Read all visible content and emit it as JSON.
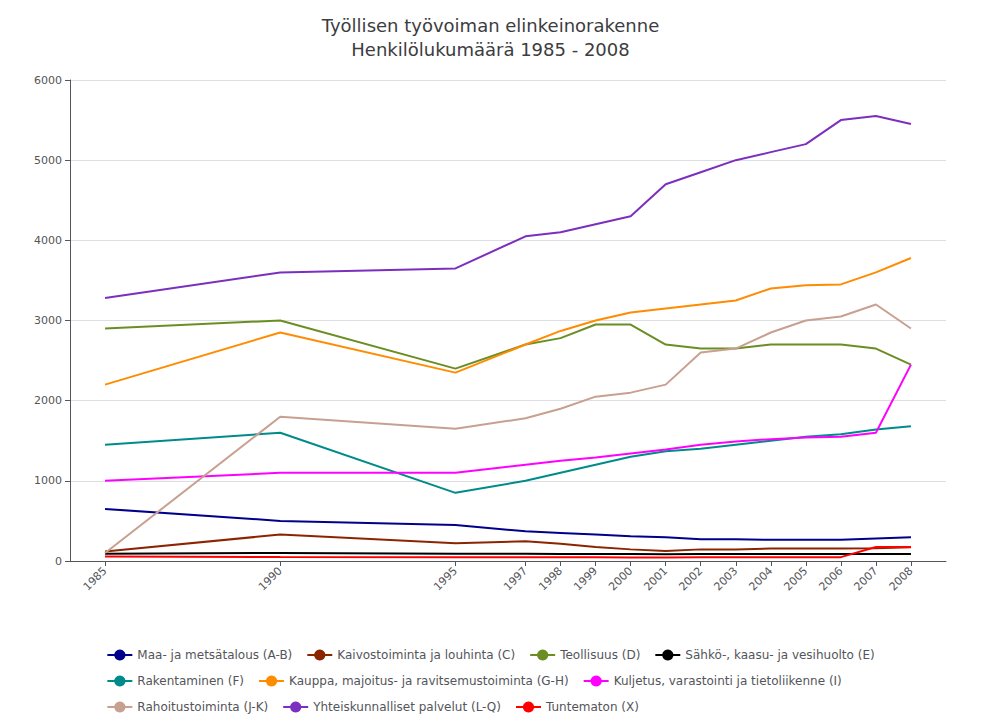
{
  "chart_data": {
    "type": "line",
    "title": "Työllisen työvoiman elinkeinorakenne\nHenkilölukumäärä 1985 - 2008",
    "x": [
      1985,
      1990,
      1995,
      1997,
      1998,
      1999,
      2000,
      2001,
      2002,
      2003,
      2004,
      2005,
      2006,
      2007,
      2008
    ],
    "series": [
      {
        "name": "Maa- ja metsätalous (A-B)",
        "color": "#00008B",
        "values": [
          650,
          500,
          450,
          370,
          350,
          330,
          310,
          295,
          270,
          270,
          265,
          265,
          265,
          280,
          295
        ]
      },
      {
        "name": "Kaivostoiminta ja louhinta (C)",
        "color": "#8B2500",
        "values": [
          120,
          330,
          220,
          245,
          215,
          175,
          145,
          125,
          145,
          145,
          155,
          155,
          155,
          160,
          170
        ]
      },
      {
        "name": "Teollisuus (D)",
        "color": "#6B8E23",
        "values": [
          2900,
          3000,
          2400,
          2700,
          2780,
          2950,
          2950,
          2700,
          2650,
          2650,
          2700,
          2700,
          2700,
          2650,
          2450
        ]
      },
      {
        "name": "Sähkö-, kaasu- ja vesihuolto (E)",
        "color": "#000000",
        "values": [
          90,
          100,
          90,
          90,
          88,
          88,
          88,
          85,
          88,
          88,
          88,
          88,
          88,
          88,
          88
        ]
      },
      {
        "name": "Rakentaminen (F)",
        "color": "#008B8B",
        "values": [
          1450,
          1600,
          850,
          1000,
          1100,
          1200,
          1300,
          1370,
          1400,
          1450,
          1500,
          1550,
          1580,
          1640,
          1680
        ]
      },
      {
        "name": "Kauppa, majoitus- ja ravitsemustoiminta (G-H)",
        "color": "#FF8C00",
        "values": [
          2200,
          2850,
          2350,
          2700,
          2870,
          3000,
          3100,
          3150,
          3200,
          3250,
          3400,
          3440,
          3450,
          3600,
          3780
        ]
      },
      {
        "name": "Kuljetus, varastointi ja tietoliikenne (I)",
        "color": "#FF00FF",
        "values": [
          1000,
          1100,
          1100,
          1200,
          1250,
          1290,
          1340,
          1390,
          1450,
          1490,
          1520,
          1540,
          1550,
          1600,
          2450
        ]
      },
      {
        "name": "Rahoitustoiminta (J-K)",
        "color": "#C8A090",
        "values": [
          100,
          1800,
          1650,
          1780,
          1900,
          2050,
          2100,
          2200,
          2600,
          2650,
          2850,
          3000,
          3050,
          3200,
          2900
        ]
      },
      {
        "name": "Yhteiskunnalliset palvelut (L-Q)",
        "color": "#7B2FBE",
        "values": [
          3280,
          3600,
          3650,
          4050,
          4100,
          4200,
          4300,
          4700,
          4850,
          5000,
          5100,
          5200,
          5500,
          5550,
          5450
        ]
      },
      {
        "name": "Tuntematon (X)",
        "color": "#FF0000",
        "values": [
          55,
          50,
          48,
          48,
          48,
          48,
          43,
          43,
          48,
          48,
          48,
          48,
          48,
          175,
          175
        ]
      }
    ],
    "xlim": [
      1984,
      2009
    ],
    "xticks": [
      1985,
      1990,
      1995,
      1997,
      1998,
      1999,
      2000,
      2001,
      2002,
      2003,
      2004,
      2005,
      2006,
      2007,
      2008
    ],
    "ylim": [
      0,
      6000
    ],
    "yticks": [
      0,
      1000,
      2000,
      3000,
      4000,
      5000,
      6000
    ],
    "grid": true,
    "legend": "bottom"
  }
}
